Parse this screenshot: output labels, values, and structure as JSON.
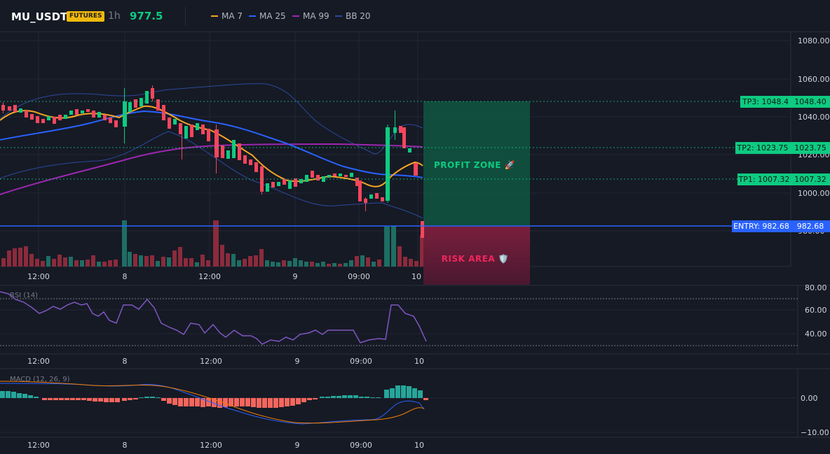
{
  "header": {
    "symbol": "MU_USDT",
    "badge": "FUTURES",
    "timeframe": "1h",
    "price": "977.5",
    "legend": [
      {
        "label": "MA 7",
        "color": "#f5a623"
      },
      {
        "label": "MA 25",
        "color": "#2962ff"
      },
      {
        "label": "MA 99",
        "color": "#9c27b0"
      },
      {
        "label": "BB 20",
        "color": "#2b4a9c"
      }
    ]
  },
  "main": {
    "price_axis": [
      "1080.00",
      "1060.00",
      "1040.00",
      "1020.00",
      "1000.00",
      "980.00"
    ],
    "time_axis": [
      "12:00",
      "8",
      "12:00",
      "9",
      "09:00",
      "10"
    ],
    "zones": {
      "profit": "PROFIT ZONE 🚀",
      "risk": "RISK AREA 🛡️"
    },
    "levels": [
      {
        "id": "tp3",
        "label": "TP3: 1048.4",
        "axis": "1048.40",
        "value": 1048.4
      },
      {
        "id": "tp2",
        "label": "TP2: 1023.75",
        "axis": "1023.75",
        "value": 1023.75
      },
      {
        "id": "tp1",
        "label": "TP1: 1007.32",
        "axis": "1007.32",
        "value": 1007.32
      },
      {
        "id": "entry",
        "label": "ENTRY: 982.68",
        "axis": "982.68",
        "value": 982.68
      }
    ]
  },
  "rsi": {
    "label": "RSI (14)",
    "axis": [
      "80.00",
      "60.00",
      "40.00"
    ],
    "time_axis": [
      "12:00",
      "8",
      "12:00",
      "9",
      "09:00",
      "10"
    ]
  },
  "macd": {
    "label": "MACD (12, 26, 9)",
    "axis": [
      "0.00",
      "−10.00"
    ],
    "time_axis": [
      "12:00",
      "8",
      "12:00",
      "9",
      "09:00",
      "10"
    ]
  },
  "colors": {
    "up": "#0ecb81",
    "down": "#f6465d",
    "bg": "#161a25",
    "grid": "#232734"
  }
}
